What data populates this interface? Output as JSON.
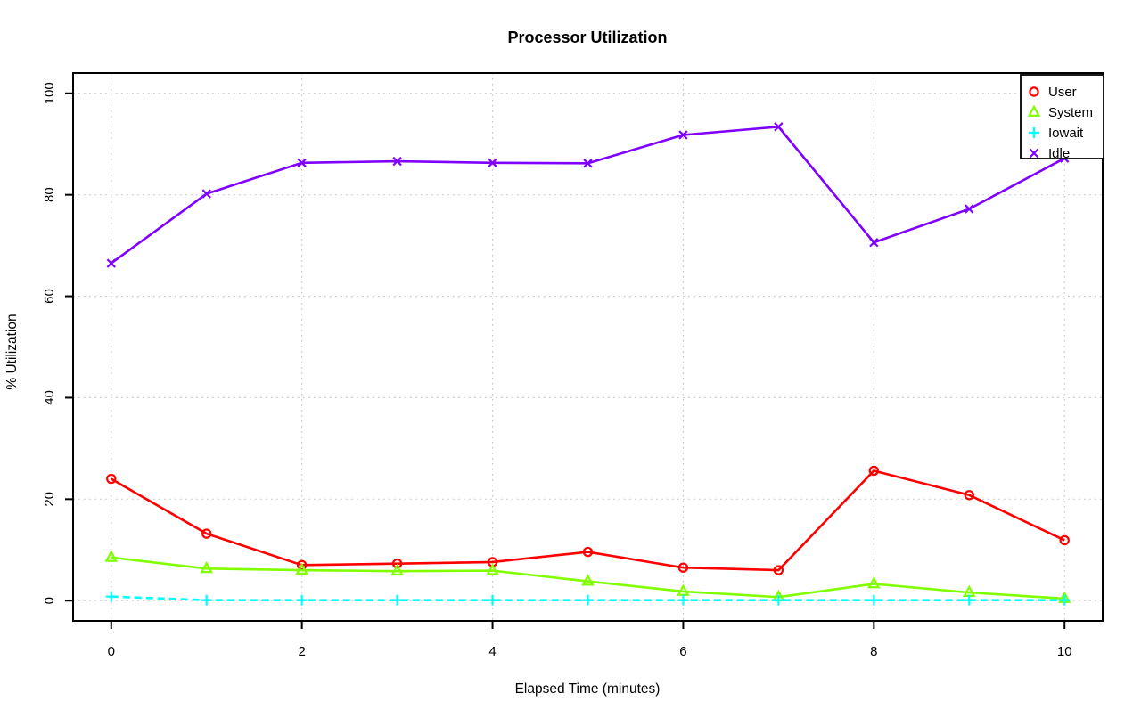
{
  "page": {
    "background": "#FFFFFF",
    "foreground": "#000000"
  },
  "chart_data": {
    "type": "line",
    "title": "Processor Utilization",
    "xlabel": "Elapsed Time (minutes)",
    "ylabel": "% Utilization",
    "x": [
      0,
      1,
      2,
      3,
      4,
      5,
      6,
      7,
      8,
      9,
      10
    ],
    "x_ticks": [
      0,
      2,
      4,
      6,
      8,
      10
    ],
    "y_ticks": [
      0,
      20,
      40,
      60,
      80,
      100
    ],
    "xlim": [
      -0.4,
      10.4
    ],
    "ylim": [
      -4,
      104
    ],
    "grid": true,
    "grid_color": "#C6C6C6",
    "axis_color": "#000000",
    "legend_position": "top-right",
    "series": [
      {
        "name": "User",
        "color": "#FF0000",
        "marker": "circle",
        "line_style": "solid",
        "values": [
          24.0,
          13.2,
          7.0,
          7.3,
          7.6,
          9.6,
          6.5,
          6.0,
          25.6,
          20.8,
          11.9
        ]
      },
      {
        "name": "System",
        "color": "#80FF00",
        "marker": "triangle",
        "line_style": "solid",
        "values": [
          8.5,
          6.3,
          6.0,
          5.8,
          5.9,
          3.8,
          1.8,
          0.7,
          3.3,
          1.6,
          0.4
        ]
      },
      {
        "name": "Iowait",
        "color": "#00FFFF",
        "marker": "plus",
        "line_style": "dashed",
        "values": [
          0.8,
          0.1,
          0.1,
          0.1,
          0.1,
          0.1,
          0.1,
          0.1,
          0.1,
          0.1,
          0.1
        ]
      },
      {
        "name": "Idle",
        "color": "#8000FF",
        "marker": "x",
        "line_style": "solid",
        "values": [
          66.5,
          80.2,
          86.3,
          86.6,
          86.3,
          86.2,
          91.8,
          93.4,
          70.6,
          77.2,
          87.2
        ]
      }
    ]
  }
}
